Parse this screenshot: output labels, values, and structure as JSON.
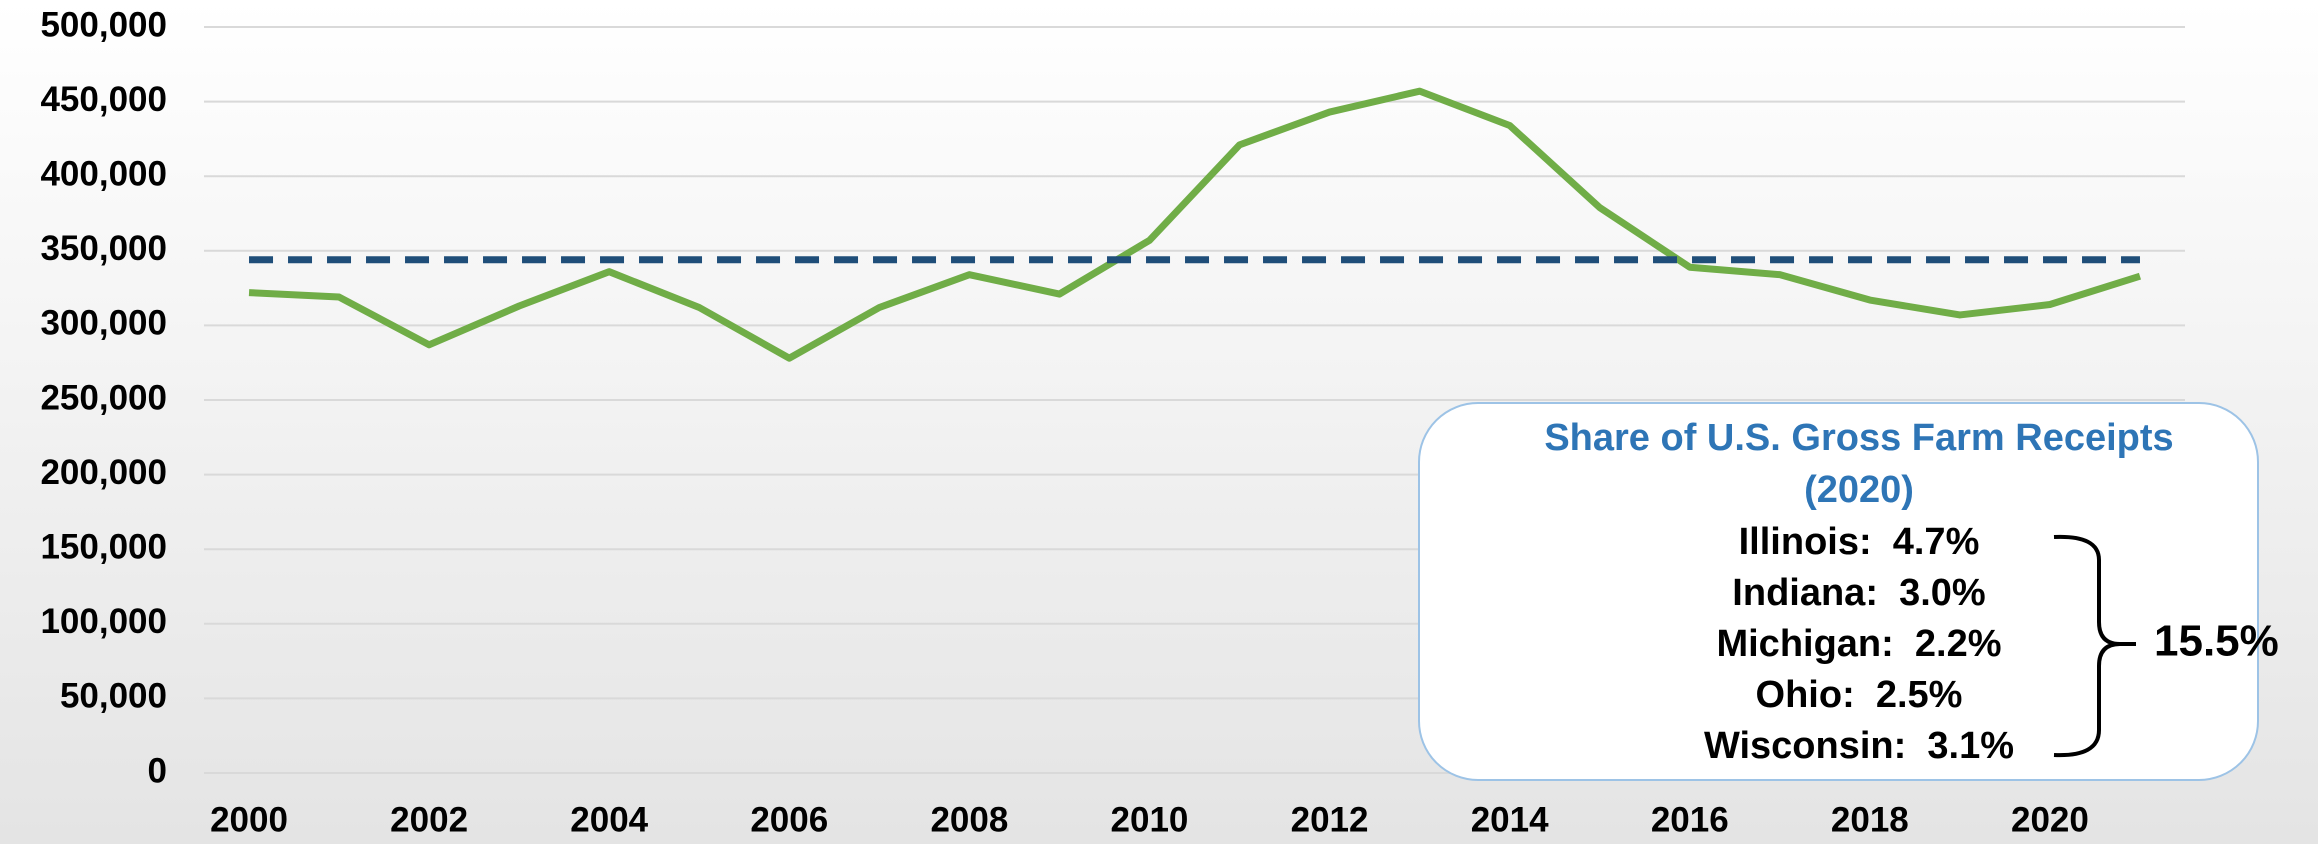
{
  "chart_data": {
    "type": "line",
    "x": [
      2000,
      2001,
      2002,
      2003,
      2004,
      2005,
      2006,
      2007,
      2008,
      2009,
      2010,
      2011,
      2012,
      2013,
      2014,
      2015,
      2016,
      2017,
      2018,
      2019,
      2020,
      2021
    ],
    "series": [
      {
        "color": "#70ad47",
        "values": [
          322000,
          319000,
          287000,
          313000,
          336000,
          312000,
          278000,
          312000,
          334000,
          321000,
          357000,
          421000,
          443000,
          457000,
          434000,
          379000,
          339000,
          334000,
          317000,
          307000,
          314000,
          333000
        ]
      },
      {
        "color": "#1f4e79",
        "dashed": true,
        "values": [
          344000,
          344000,
          344000,
          344000,
          344000,
          344000,
          344000,
          344000,
          344000,
          344000,
          344000,
          344000,
          344000,
          344000,
          344000,
          344000,
          344000,
          344000,
          344000,
          344000,
          344000,
          344000
        ]
      }
    ],
    "xlim": [
      1999.5,
      2021.5
    ],
    "xticks": [
      2000,
      2002,
      2004,
      2006,
      2008,
      2010,
      2012,
      2014,
      2016,
      2018,
      2020
    ],
    "ylim": [
      0,
      500000
    ],
    "yticks": [
      0,
      {
        "value": 50000,
        "label": "50,000"
      },
      {
        "value": 100000,
        "label": "100,000"
      },
      {
        "value": 150000,
        "label": "150,000"
      },
      {
        "value": 200000,
        "label": "200,000"
      },
      {
        "value": 250000,
        "label": "250,000"
      },
      {
        "value": 300000,
        "label": "300,000"
      },
      {
        "value": 350000,
        "label": "350,000"
      },
      {
        "value": 400000,
        "label": "400,000"
      },
      {
        "value": 450000,
        "label": "450,000"
      },
      {
        "value": 500000,
        "label": "500,000"
      }
    ],
    "grid": true,
    "annotation": {
      "title_lines": [
        "Share of U.S. Gross Farm Receipts",
        "(2020)"
      ],
      "items": [
        "Illinois:  4.7%",
        "Indiana:  3.0%",
        "Michigan:  2.2%",
        "Ohio:  2.5%",
        "Wisconsin:  3.1%"
      ],
      "total": "15.5%"
    }
  }
}
